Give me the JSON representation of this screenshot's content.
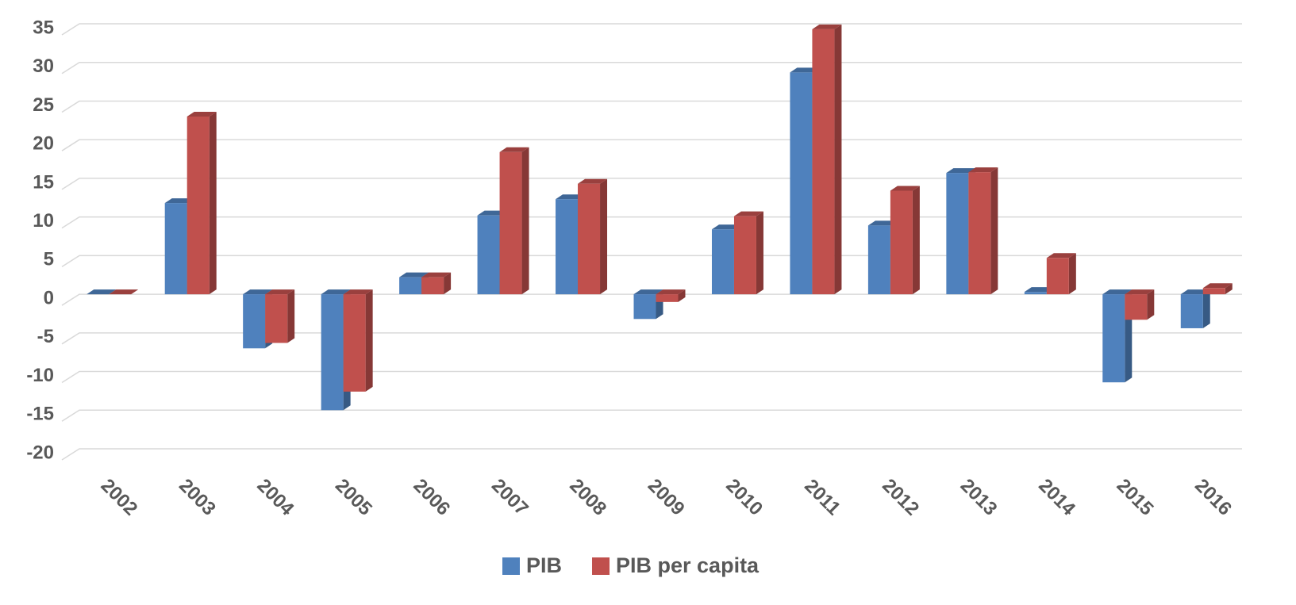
{
  "chart_data": {
    "type": "bar3d",
    "categories": [
      "2002",
      "2003",
      "2004",
      "2005",
      "2006",
      "2007",
      "2008",
      "2009",
      "2010",
      "2011",
      "2012",
      "2013",
      "2014",
      "2015",
      "2016"
    ],
    "series": [
      {
        "name": "PIB",
        "color": "#4f81bd",
        "values": [
          0,
          11.8,
          -7,
          -15,
          2.2,
          10.2,
          12.3,
          -3.2,
          8.4,
          28.7,
          8.9,
          15.7,
          0.3,
          -11.4,
          -4.4
        ]
      },
      {
        "name": "PIB per capita",
        "color": "#c0504d",
        "values": [
          0,
          23,
          -6.3,
          -12.6,
          2.2,
          18.4,
          14.3,
          -1,
          10.1,
          34.3,
          13.4,
          15.8,
          4.7,
          -3.3,
          0.8
        ]
      }
    ],
    "ylim": [
      -20,
      35
    ],
    "yticks": [
      -20,
      -15,
      -10,
      -5,
      0,
      5,
      10,
      15,
      20,
      25,
      30,
      35
    ],
    "grid": true,
    "legend": "bottom"
  }
}
